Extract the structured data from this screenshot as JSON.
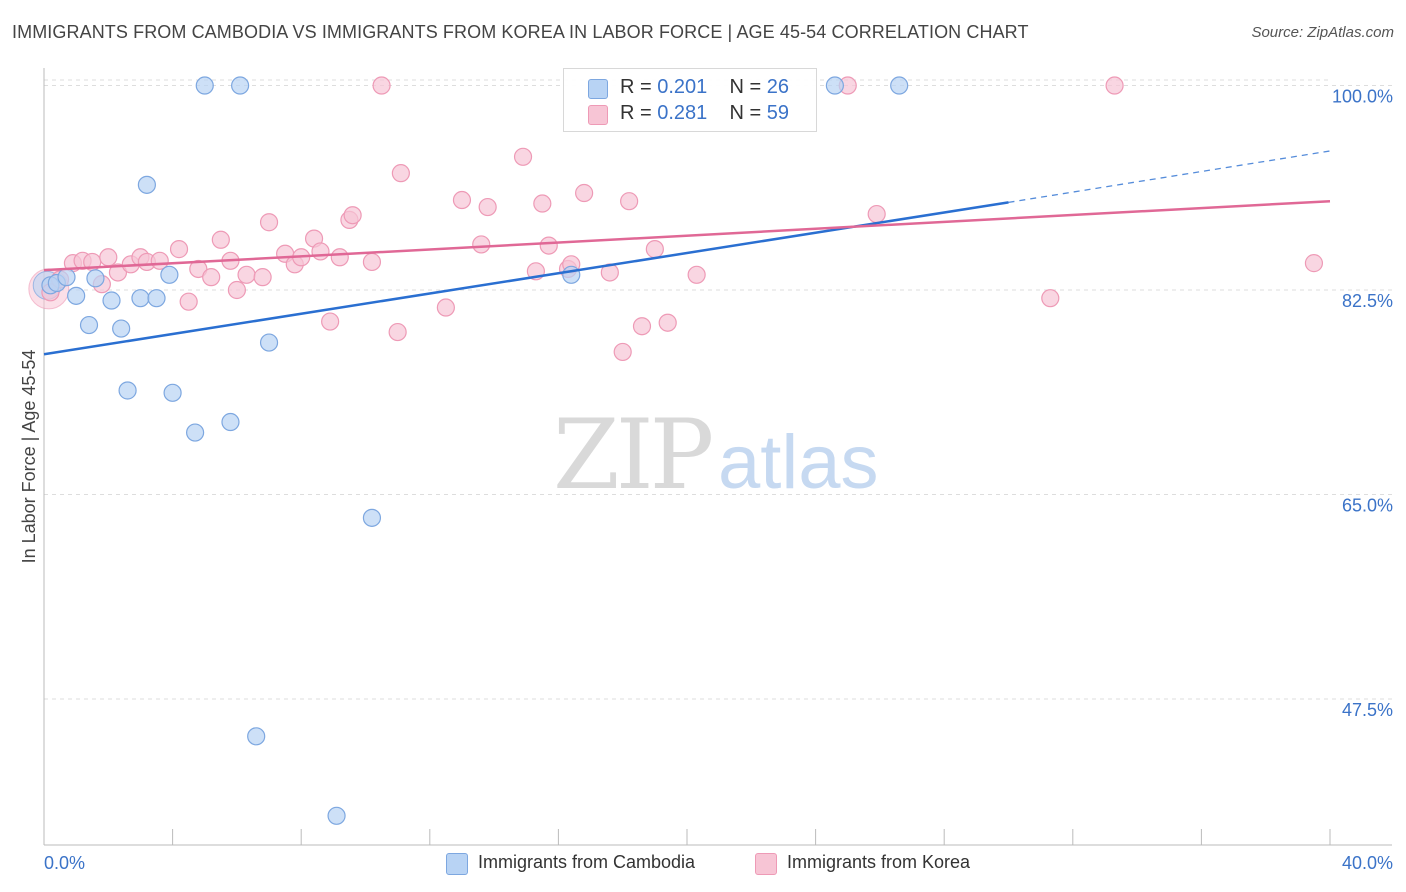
{
  "title": "IMMIGRANTS FROM CAMBODIA VS IMMIGRANTS FROM KOREA IN LABOR FORCE | AGE 45-54 CORRELATION CHART",
  "source": "Source: ZipAtlas.com",
  "watermark": {
    "zip": "ZIP",
    "atlas": "atlas"
  },
  "legend": {
    "cambodia": {
      "r_label": "R =",
      "r_value": "0.201",
      "n_label": "N =",
      "n_value": "26"
    },
    "korea": {
      "r_label": "R =",
      "r_value": "0.281",
      "n_label": "N =",
      "n_value": "59"
    }
  },
  "colors": {
    "cambodia_fill": "#b8d3f4",
    "cambodia_stroke": "#7da7e0",
    "cambodia_line": "#2a6fd1",
    "korea_fill": "#f7c5d5",
    "korea_stroke": "#ee9ab6",
    "korea_line": "#e06896",
    "axis_text": "#3b73c8",
    "grid": "#dddddd"
  },
  "chart_data": {
    "type": "scatter",
    "title": "IMMIGRANTS FROM CAMBODIA VS IMMIGRANTS FROM KOREA IN LABOR FORCE | AGE 45-54 CORRELATION CHART",
    "xlabel": "",
    "ylabel": "In Labor Force | Age 45-54",
    "xlim": [
      0,
      40
    ],
    "ylim": [
      35,
      101.5
    ],
    "x_tick_labels": [
      "0.0%",
      "40.0%"
    ],
    "y_ticks": [
      47.5,
      65.0,
      82.5,
      100.0
    ],
    "y_tick_labels": [
      "47.5%",
      "65.0%",
      "82.5%",
      "100.0%"
    ],
    "grid": true,
    "legend_position": "top-center",
    "series": [
      {
        "name": "Immigrants from Cambodia",
        "points": [
          [
            0.2,
            82.9
          ],
          [
            0.4,
            83.1
          ],
          [
            0.7,
            83.6
          ],
          [
            1.0,
            82.0
          ],
          [
            1.4,
            79.5
          ],
          [
            1.6,
            83.5
          ],
          [
            2.1,
            81.6
          ],
          [
            2.4,
            79.2
          ],
          [
            2.6,
            73.9
          ],
          [
            3.0,
            81.8
          ],
          [
            3.2,
            91.5
          ],
          [
            3.5,
            81.8
          ],
          [
            3.9,
            83.8
          ],
          [
            4.0,
            73.7
          ],
          [
            4.7,
            70.3
          ],
          [
            5.0,
            100.0
          ],
          [
            5.8,
            71.2
          ],
          [
            6.1,
            100.0
          ],
          [
            6.6,
            44.3
          ],
          [
            7.0,
            78.0
          ],
          [
            9.1,
            37.5
          ],
          [
            10.2,
            63.0
          ],
          [
            16.4,
            83.8
          ],
          [
            24.6,
            100.0
          ],
          [
            26.6,
            100.0
          ]
        ],
        "trend": {
          "x0": 0,
          "y0": 77.0,
          "x1": 30.0,
          "y1": 90.0,
          "dash_to_x": 40.0,
          "dash_to_y": 94.4
        }
      },
      {
        "name": "Immigrants from Korea",
        "points": [
          [
            0.2,
            82.3
          ],
          [
            0.5,
            83.4
          ],
          [
            0.9,
            84.8
          ],
          [
            1.2,
            85.0
          ],
          [
            1.5,
            84.9
          ],
          [
            1.8,
            83.0
          ],
          [
            2.0,
            85.3
          ],
          [
            2.3,
            84.0
          ],
          [
            2.7,
            84.7
          ],
          [
            3.0,
            85.3
          ],
          [
            3.2,
            84.9
          ],
          [
            3.6,
            85.0
          ],
          [
            4.2,
            86.0
          ],
          [
            4.5,
            81.5
          ],
          [
            4.8,
            84.3
          ],
          [
            5.2,
            83.6
          ],
          [
            5.5,
            86.8
          ],
          [
            5.8,
            85.0
          ],
          [
            6.0,
            82.5
          ],
          [
            6.3,
            83.8
          ],
          [
            6.8,
            83.6
          ],
          [
            7.0,
            88.3
          ],
          [
            7.5,
            85.6
          ],
          [
            7.8,
            84.7
          ],
          [
            8.0,
            85.3
          ],
          [
            8.4,
            86.9
          ],
          [
            8.6,
            85.8
          ],
          [
            8.9,
            79.8
          ],
          [
            9.2,
            85.3
          ],
          [
            9.5,
            88.5
          ],
          [
            9.6,
            88.9
          ],
          [
            10.2,
            84.9
          ],
          [
            10.5,
            100.0
          ],
          [
            11.0,
            78.9
          ],
          [
            11.1,
            92.5
          ],
          [
            12.5,
            81.0
          ],
          [
            13.0,
            90.2
          ],
          [
            13.6,
            86.4
          ],
          [
            13.8,
            89.6
          ],
          [
            14.9,
            93.9
          ],
          [
            15.3,
            84.1
          ],
          [
            15.5,
            89.9
          ],
          [
            15.7,
            86.3
          ],
          [
            16.3,
            84.3
          ],
          [
            16.4,
            84.7
          ],
          [
            16.8,
            90.8
          ],
          [
            17.6,
            84.0
          ],
          [
            18.0,
            77.2
          ],
          [
            18.2,
            90.1
          ],
          [
            18.6,
            79.4
          ],
          [
            19.0,
            86.0
          ],
          [
            19.4,
            79.7
          ],
          [
            20.3,
            83.8
          ],
          [
            25.0,
            100.0
          ],
          [
            25.9,
            89.0
          ],
          [
            31.3,
            81.8
          ],
          [
            33.3,
            100.0
          ],
          [
            39.5,
            84.8
          ]
        ],
        "trend": {
          "x0": 0,
          "y0": 84.2,
          "x1": 40.0,
          "y1": 90.1
        }
      }
    ]
  }
}
